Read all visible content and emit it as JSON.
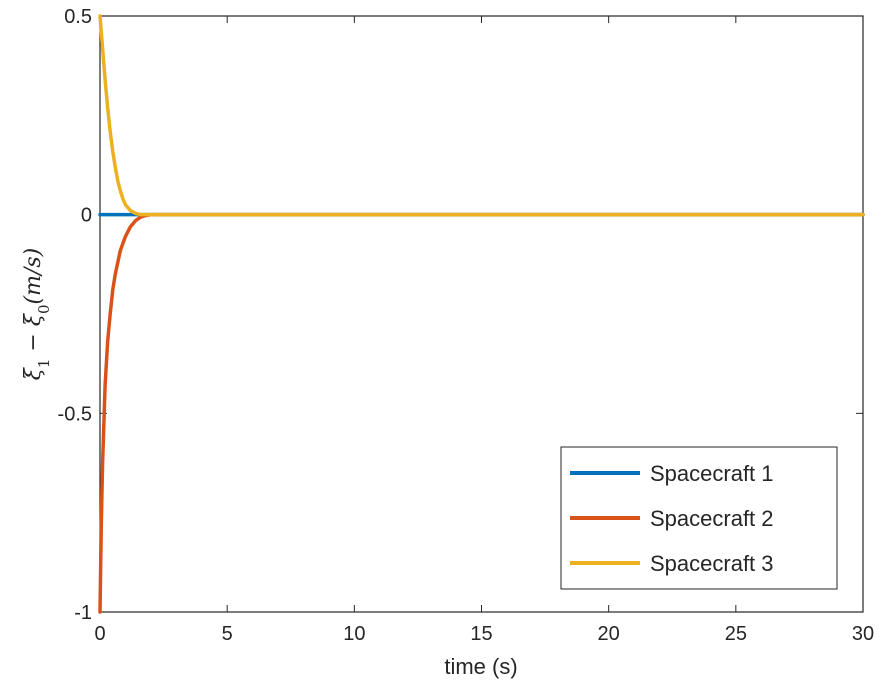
{
  "chart_data": {
    "type": "line",
    "title": "",
    "xlabel": "time (s)",
    "ylabel": "ξ1 − ξ0(m/s)",
    "ylabel_parts": {
      "main": "ξ",
      "sub1": "1",
      "minus": " − ",
      "main2": "ξ",
      "sub2": "0",
      "rest": "(m/s)"
    },
    "xlim": [
      0,
      30
    ],
    "ylim": [
      -1,
      0.5
    ],
    "x_ticks": [
      0,
      5,
      10,
      15,
      20,
      25,
      30
    ],
    "x_tick_labels": [
      "0",
      "5",
      "10",
      "15",
      "20",
      "25",
      "30"
    ],
    "y_ticks": [
      -1,
      -0.5,
      0,
      0.5
    ],
    "y_tick_labels": [
      "-1",
      "-0.5",
      "0",
      "0.5"
    ],
    "grid": false,
    "legend_position": "bottom-right",
    "series": [
      {
        "name": "Spacecraft 1",
        "color": "#0072BD",
        "x": [
          0,
          0.5,
          1,
          1.5,
          2,
          5,
          10,
          15,
          20,
          25,
          30
        ],
        "values": [
          0,
          0,
          0,
          0,
          0,
          0,
          0,
          0,
          0,
          0,
          0
        ]
      },
      {
        "name": "Spacecraft 2",
        "color": "#D95319",
        "x": [
          0,
          0.05,
          0.1,
          0.2,
          0.3,
          0.4,
          0.5,
          0.6,
          0.7,
          0.8,
          1.0,
          1.2,
          1.4,
          1.6,
          1.8,
          2,
          5,
          10,
          15,
          20,
          25,
          30
        ],
        "values": [
          -1,
          -0.78,
          -0.63,
          -0.43,
          -0.32,
          -0.25,
          -0.19,
          -0.15,
          -0.12,
          -0.09,
          -0.055,
          -0.03,
          -0.015,
          -0.006,
          -0.002,
          0,
          0,
          0,
          0,
          0,
          0,
          0
        ]
      },
      {
        "name": "Spacecraft 3",
        "color": "#EDB120",
        "x": [
          0,
          0.05,
          0.1,
          0.2,
          0.3,
          0.4,
          0.5,
          0.6,
          0.7,
          0.8,
          0.9,
          1.0,
          1.2,
          1.4,
          1.6,
          2,
          5,
          10,
          15,
          20,
          25,
          30
        ],
        "values": [
          0.5,
          0.46,
          0.42,
          0.34,
          0.27,
          0.21,
          0.16,
          0.12,
          0.085,
          0.06,
          0.04,
          0.025,
          0.01,
          0.003,
          0,
          0,
          0,
          0,
          0,
          0,
          0,
          0
        ]
      }
    ]
  }
}
